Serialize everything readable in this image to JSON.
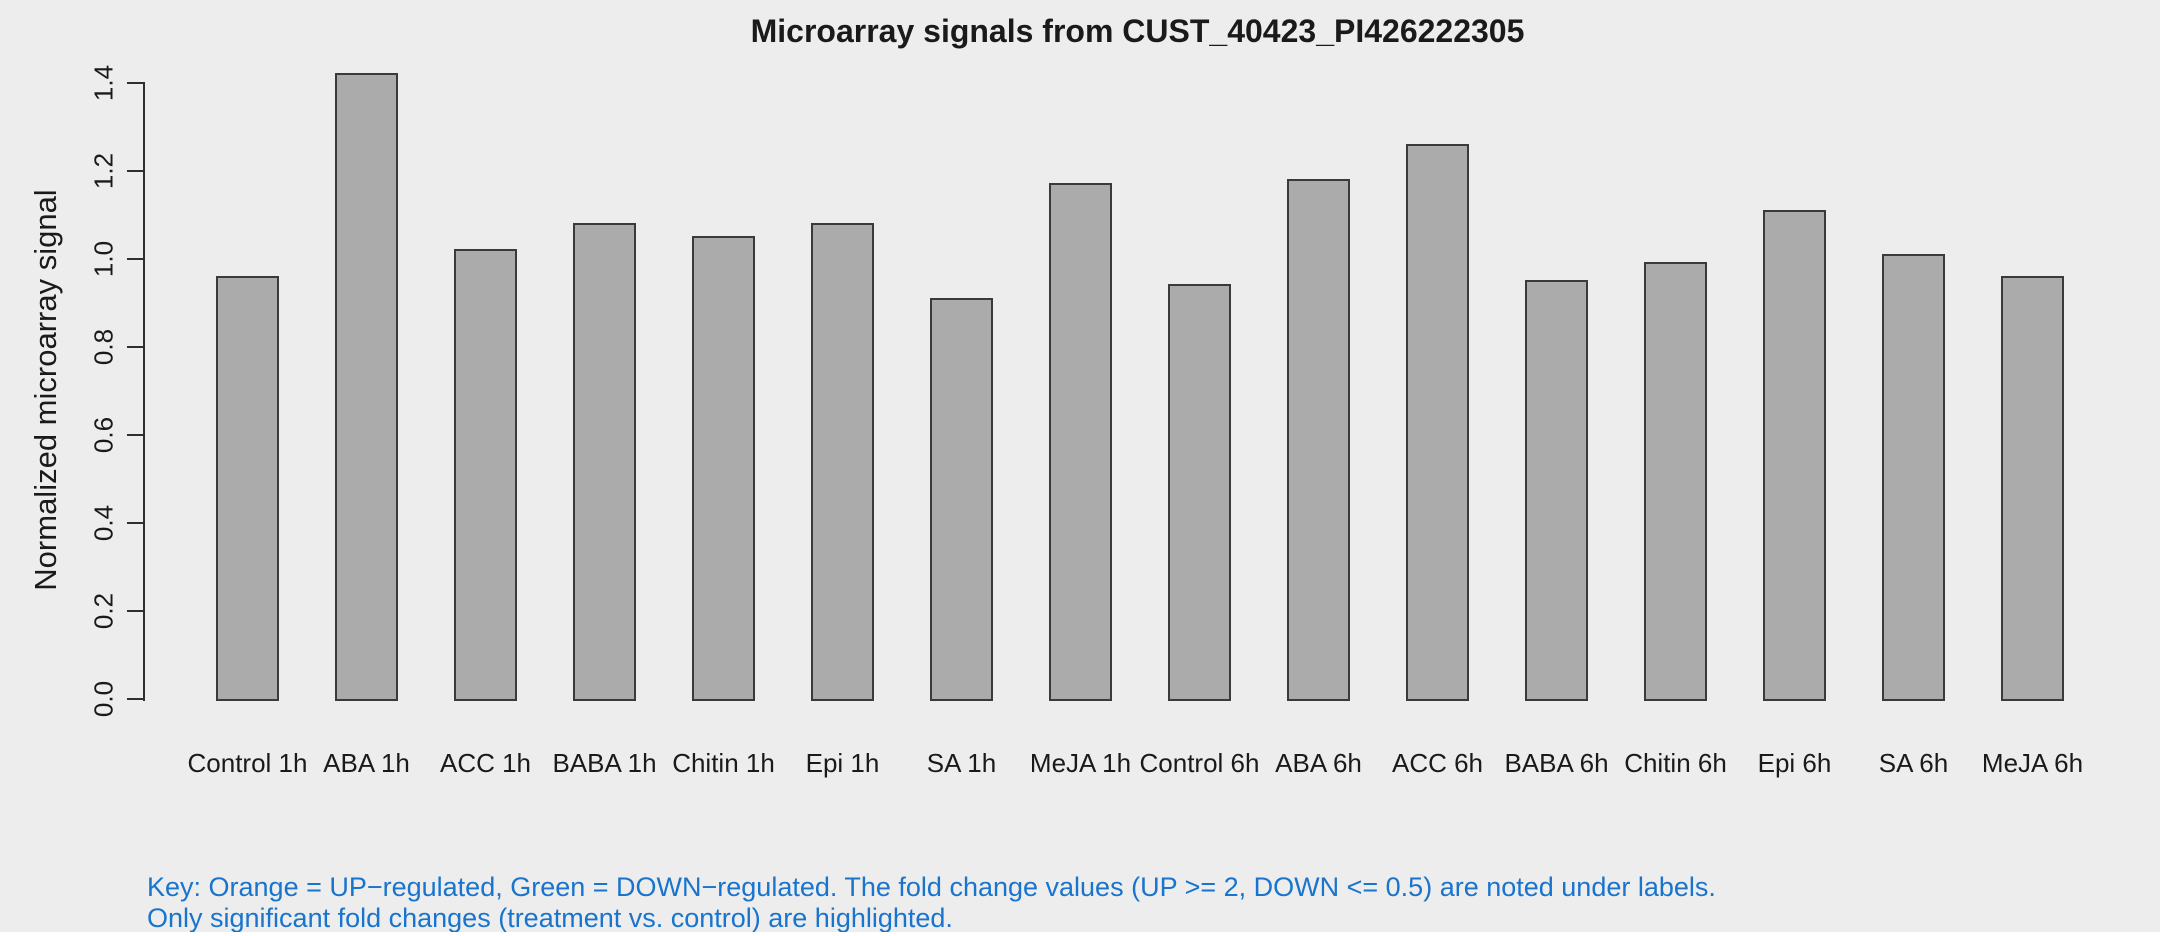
{
  "title": "Microarray signals from CUST_40423_PI426222305",
  "y_axis": {
    "label": "Normalized microarray signal",
    "ticks": [
      "0.0",
      "0.2",
      "0.4",
      "0.6",
      "0.8",
      "1.0",
      "1.2",
      "1.4"
    ]
  },
  "key": {
    "line1": "Key: Orange = UP−regulated, Green = DOWN−regulated. The fold change values (UP >= 2, DOWN <= 0.5) are noted under labels.",
    "line2": "Only significant fold changes (treatment vs. control) are highlighted.",
    "color": "#1874CD"
  },
  "chart_data": {
    "type": "bar",
    "title": "Microarray signals from CUST_40423_PI426222305",
    "xlabel": "",
    "ylabel": "Normalized microarray signal",
    "ylim": [
      0,
      1.4
    ],
    "y_tick_step": 0.2,
    "grid": false,
    "legend": "none",
    "categories": [
      "Control 1h",
      "ABA 1h",
      "ACC 1h",
      "BABA 1h",
      "Chitin 1h",
      "Epi 1h",
      "SA 1h",
      "MeJA 1h",
      "Control 6h",
      "ABA 6h",
      "ACC 6h",
      "BABA 6h",
      "Chitin 6h",
      "Epi 6h",
      "SA 6h",
      "MeJA 6h"
    ],
    "values": [
      0.96,
      1.42,
      1.02,
      1.08,
      1.05,
      1.08,
      0.91,
      1.17,
      0.94,
      1.18,
      1.26,
      0.95,
      0.99,
      1.11,
      1.01,
      0.96
    ],
    "bar_fill": "#ABABAB",
    "bar_border": "#3A3A3A",
    "background": "#EDEDED"
  }
}
